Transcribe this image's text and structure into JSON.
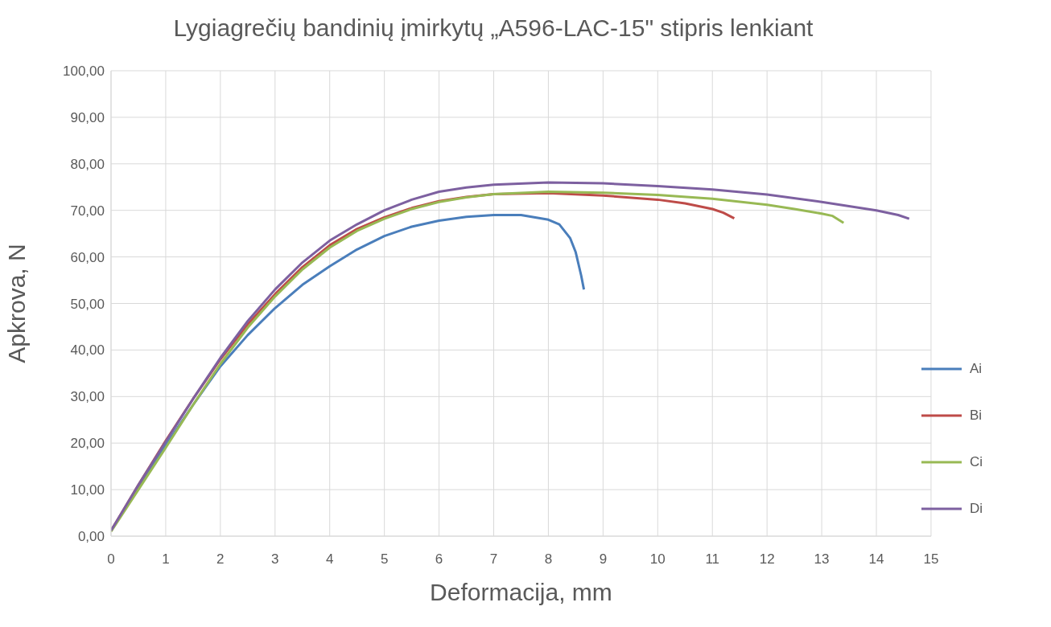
{
  "chart_data": {
    "type": "line",
    "title": "Lygiagrečių bandinių įmirkytų „A596-LAC-15\" stipris lenkiant",
    "xlabel": "Deformacija, mm",
    "ylabel": "Apkrova, N",
    "xlim": [
      0,
      15
    ],
    "xticks": [
      0,
      1,
      2,
      3,
      4,
      5,
      6,
      7,
      8,
      9,
      10,
      11,
      12,
      13,
      14,
      15
    ],
    "ylim": [
      0,
      100
    ],
    "yticks": [
      {
        "value": 0,
        "label": "0,00"
      },
      {
        "value": 10,
        "label": "10,00"
      },
      {
        "value": 20,
        "label": "20,00"
      },
      {
        "value": 30,
        "label": "30,00"
      },
      {
        "value": 40,
        "label": "40,00"
      },
      {
        "value": 50,
        "label": "50,00"
      },
      {
        "value": 60,
        "label": "60,00"
      },
      {
        "value": 70,
        "label": "70,00"
      },
      {
        "value": 80,
        "label": "80,00"
      },
      {
        "value": 90,
        "label": "90,00"
      },
      {
        "value": 100,
        "label": "100,00"
      }
    ],
    "grid": true,
    "legend": "right",
    "series": [
      {
        "name": "Ai",
        "color": "#4a7ebb",
        "x": [
          0,
          0.5,
          1,
          1.5,
          2,
          2.5,
          3,
          3.5,
          4,
          4.5,
          5,
          5.5,
          6,
          6.5,
          7,
          7.5,
          8,
          8.2,
          8.4,
          8.5,
          8.6,
          8.65
        ],
        "values": [
          1.2,
          10.5,
          19.5,
          28.2,
          36.5,
          43.2,
          49,
          54,
          58,
          61.6,
          64.5,
          66.5,
          67.8,
          68.6,
          69,
          69,
          68,
          67,
          64,
          61,
          56,
          53
        ]
      },
      {
        "name": "Bi",
        "color": "#be4b48",
        "x": [
          0,
          0.5,
          1,
          1.5,
          2,
          2.5,
          3,
          3.5,
          4,
          4.5,
          5,
          5.5,
          6,
          6.5,
          7,
          8,
          9,
          10,
          10.5,
          11,
          11.2,
          11.4
        ],
        "values": [
          1.2,
          11,
          20.5,
          29.5,
          38,
          45.5,
          52,
          57.8,
          62.5,
          66,
          68.5,
          70.5,
          72,
          72.9,
          73.5,
          73.7,
          73.2,
          72.3,
          71.5,
          70.3,
          69.5,
          68.3
        ]
      },
      {
        "name": "Ci",
        "color": "#98b954",
        "x": [
          0,
          0.5,
          1,
          1.5,
          2,
          2.5,
          3,
          3.5,
          4,
          4.5,
          5,
          5.5,
          6,
          6.5,
          7,
          8,
          9,
          10,
          11,
          12,
          12.5,
          13,
          13.2,
          13.4
        ],
        "values": [
          1,
          10,
          19,
          28.2,
          37,
          44.8,
          51.5,
          57.3,
          62,
          65.6,
          68.2,
          70.3,
          71.8,
          72.8,
          73.5,
          74,
          73.8,
          73.3,
          72.5,
          71.2,
          70.3,
          69.3,
          68.8,
          67.3
        ]
      },
      {
        "name": "Di",
        "color": "#7d60a0",
        "x": [
          0,
          0.5,
          1,
          1.5,
          2,
          2.5,
          3,
          3.5,
          4,
          4.5,
          5,
          5.5,
          6,
          6.5,
          7,
          8,
          9,
          10,
          11,
          12,
          13,
          14,
          14.4,
          14.6
        ],
        "values": [
          1.2,
          11,
          20.3,
          29.5,
          38.3,
          46.2,
          53,
          58.8,
          63.5,
          67,
          70,
          72.3,
          74,
          74.9,
          75.5,
          76,
          75.8,
          75.2,
          74.5,
          73.4,
          71.8,
          70,
          69,
          68.2
        ]
      }
    ]
  }
}
